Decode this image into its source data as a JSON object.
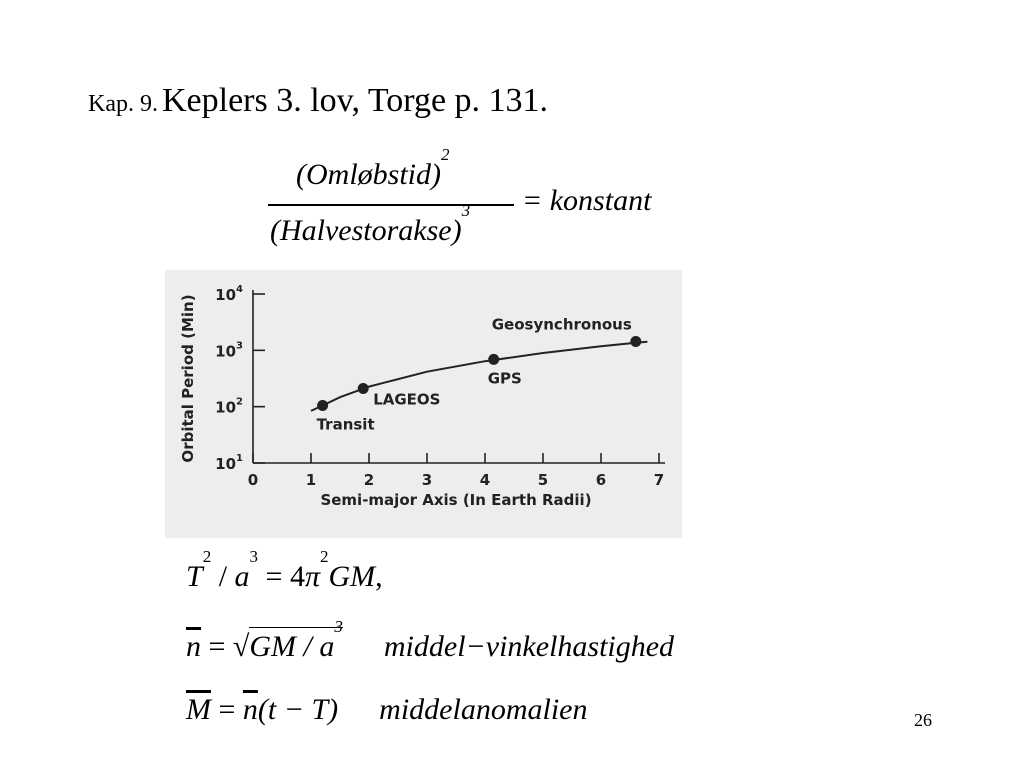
{
  "title": {
    "prefix": "Kap. 9.",
    "main": "Keplers 3. lov, Torge p. 131."
  },
  "formula": {
    "numerator": "(Omløbstid)",
    "numerator_exp": "2",
    "denominator": "(Halvestorakse)",
    "denominator_exp": "3",
    "rhs": "= konstant"
  },
  "chart_data": {
    "type": "line",
    "xlabel": "Semi-major Axis (In Earth Radii)",
    "ylabel": "Orbital Period (Min)",
    "xlim": [
      0,
      7
    ],
    "ylim_log10": [
      1,
      4
    ],
    "y_scale": "log",
    "x_ticks": [
      "0",
      "1",
      "2",
      "3",
      "4",
      "5",
      "6",
      "7"
    ],
    "y_ticks": [
      {
        "base": "10",
        "exp": "1"
      },
      {
        "base": "10",
        "exp": "2"
      },
      {
        "base": "10",
        "exp": "3"
      },
      {
        "base": "10",
        "exp": "4"
      }
    ],
    "curve": {
      "x": [
        1.0,
        1.2,
        1.5,
        2.0,
        3.0,
        4.0,
        5.0,
        6.0,
        6.6,
        6.8
      ],
      "y": [
        84,
        105,
        147,
        227,
        417,
        642,
        897,
        1180,
        1360,
        1420
      ]
    },
    "points": [
      {
        "name": "Transit",
        "x": 1.2,
        "y": 105,
        "label_side": "below"
      },
      {
        "name": "LAGEOS",
        "x": 1.9,
        "y": 210,
        "label_side": "right"
      },
      {
        "name": "GPS",
        "x": 4.15,
        "y": 690,
        "label_side": "below"
      },
      {
        "name": "Geosynchronous",
        "x": 6.6,
        "y": 1436,
        "label_side": "above"
      }
    ],
    "grid": false,
    "colors": {
      "background": "#ededed",
      "ink": "#222222"
    }
  },
  "equations": {
    "eq1": {
      "T": "T",
      "T_exp": "2",
      "slash": "/",
      "a": "a",
      "a_exp": "3",
      "eq": "=",
      "four": "4",
      "pi": "π",
      "pi_exp": "2",
      "GM": "GM",
      "comma": ","
    },
    "eq2": {
      "n": "n",
      "eq": "=",
      "radical": "√",
      "body": "GM / a",
      "body_exp": "3",
      "desc": "middel−vinkelhastighed"
    },
    "eq3": {
      "M": "M",
      "eq": "=",
      "n": "n",
      "args": "(t − T)",
      "desc": "middelanomalien"
    }
  },
  "page_number": "26"
}
